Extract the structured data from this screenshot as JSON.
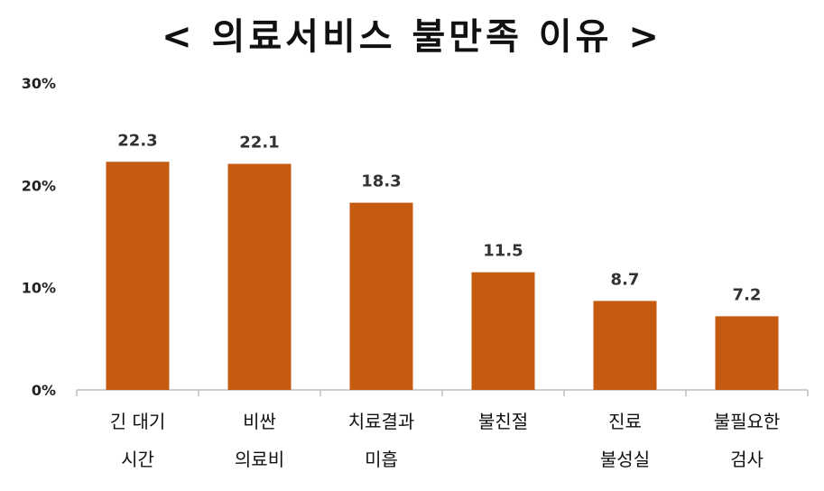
{
  "chart_data": {
    "type": "bar",
    "title": "< 의료서비스 불만족 이유 >",
    "categories": [
      [
        "긴 대기",
        "시간"
      ],
      [
        "비싼",
        "의료비"
      ],
      [
        "치료결과",
        "미흡"
      ],
      [
        "불친절"
      ],
      [
        "진료",
        "불성실"
      ],
      [
        "불필요한",
        "검사"
      ]
    ],
    "values": [
      22.3,
      22.1,
      18.3,
      11.5,
      8.7,
      7.2
    ],
    "value_labels": [
      "22.3",
      "22.1",
      "18.3",
      "11.5",
      "8.7",
      "7.2"
    ],
    "yticks": [
      {
        "value": 0,
        "label": "0%"
      },
      {
        "value": 10,
        "label": "10%"
      },
      {
        "value": 20,
        "label": "20%"
      },
      {
        "value": 30,
        "label": "30%"
      }
    ],
    "ylim": [
      0,
      30
    ],
    "grid": false,
    "xlabel": "",
    "ylabel": "",
    "bar_color": "#C55A11",
    "axis_color": "#BFBFBF"
  }
}
